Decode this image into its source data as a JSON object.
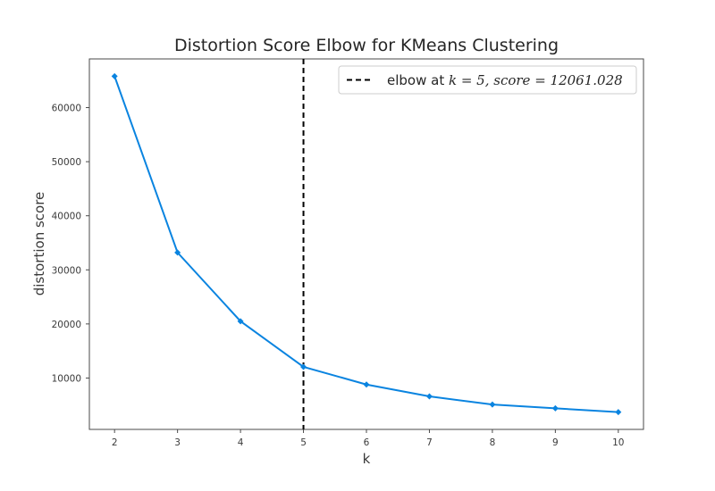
{
  "chart_data": {
    "type": "line",
    "title": "Distortion Score Elbow for KMeans Clustering",
    "xlabel": "k",
    "ylabel": "distortion score",
    "x": [
      2,
      3,
      4,
      5,
      6,
      7,
      8,
      9,
      10
    ],
    "series": [
      {
        "values": [
          65800,
          33200,
          20500,
          12061.028,
          8800,
          6600,
          5100,
          4400,
          3700
        ],
        "color": "#0a84e0",
        "marker": "diamond"
      }
    ],
    "xticks": [
      "2",
      "3",
      "4",
      "5",
      "6",
      "7",
      "8",
      "9",
      "10"
    ],
    "yticks": [
      "10000",
      "20000",
      "30000",
      "40000",
      "50000",
      "60000"
    ],
    "ytick_values": [
      10000,
      20000,
      30000,
      40000,
      50000,
      60000
    ],
    "xlim": [
      1.6,
      10.4
    ],
    "ylim": [
      500,
      69000
    ],
    "grid": false,
    "elbow": {
      "k": 5,
      "score": 12061.028,
      "color": "#000000",
      "style": "dashed"
    },
    "legend": {
      "position": "top-right",
      "text_prefix": "elbow at ",
      "text_math": "k = 5, score = 12061.028"
    }
  }
}
